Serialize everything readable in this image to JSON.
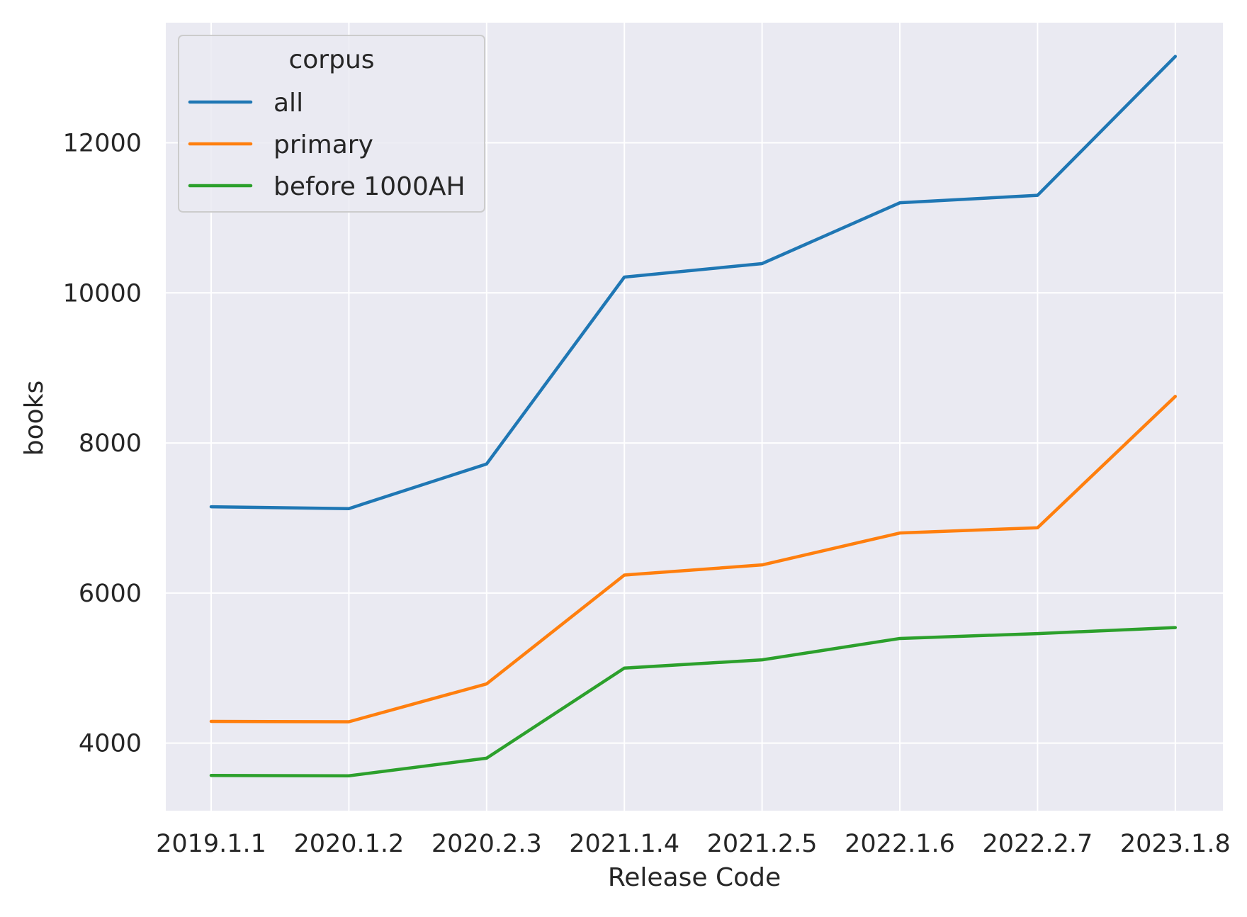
{
  "chart_data": {
    "type": "line",
    "xlabel": "Release Code",
    "ylabel": "books",
    "categories": [
      "2019.1.1",
      "2020.1.2",
      "2020.2.3",
      "2021.1.4",
      "2021.2.5",
      "2022.1.6",
      "2022.2.7",
      "2023.1.8"
    ],
    "ylim": [
      3100,
      13600
    ],
    "yticks": [
      4000,
      6000,
      8000,
      10000,
      12000
    ],
    "grid": true,
    "legend": {
      "title": "corpus",
      "placement": "top-left"
    },
    "series": [
      {
        "name": "all",
        "color": "#1f77b4",
        "values": [
          7150,
          7125,
          7720,
          10210,
          10390,
          11200,
          11300,
          13150
        ]
      },
      {
        "name": "primary",
        "color": "#ff7f0e",
        "values": [
          4290,
          4285,
          4790,
          6240,
          6375,
          6800,
          6870,
          8620
        ]
      },
      {
        "name": "before 1000AH",
        "color": "#2ca02c",
        "values": [
          3570,
          3565,
          3800,
          5000,
          5110,
          5395,
          5460,
          5540
        ]
      }
    ]
  },
  "style": {
    "plot_background": "#eaeaf2",
    "grid_color": "#ffffff"
  }
}
